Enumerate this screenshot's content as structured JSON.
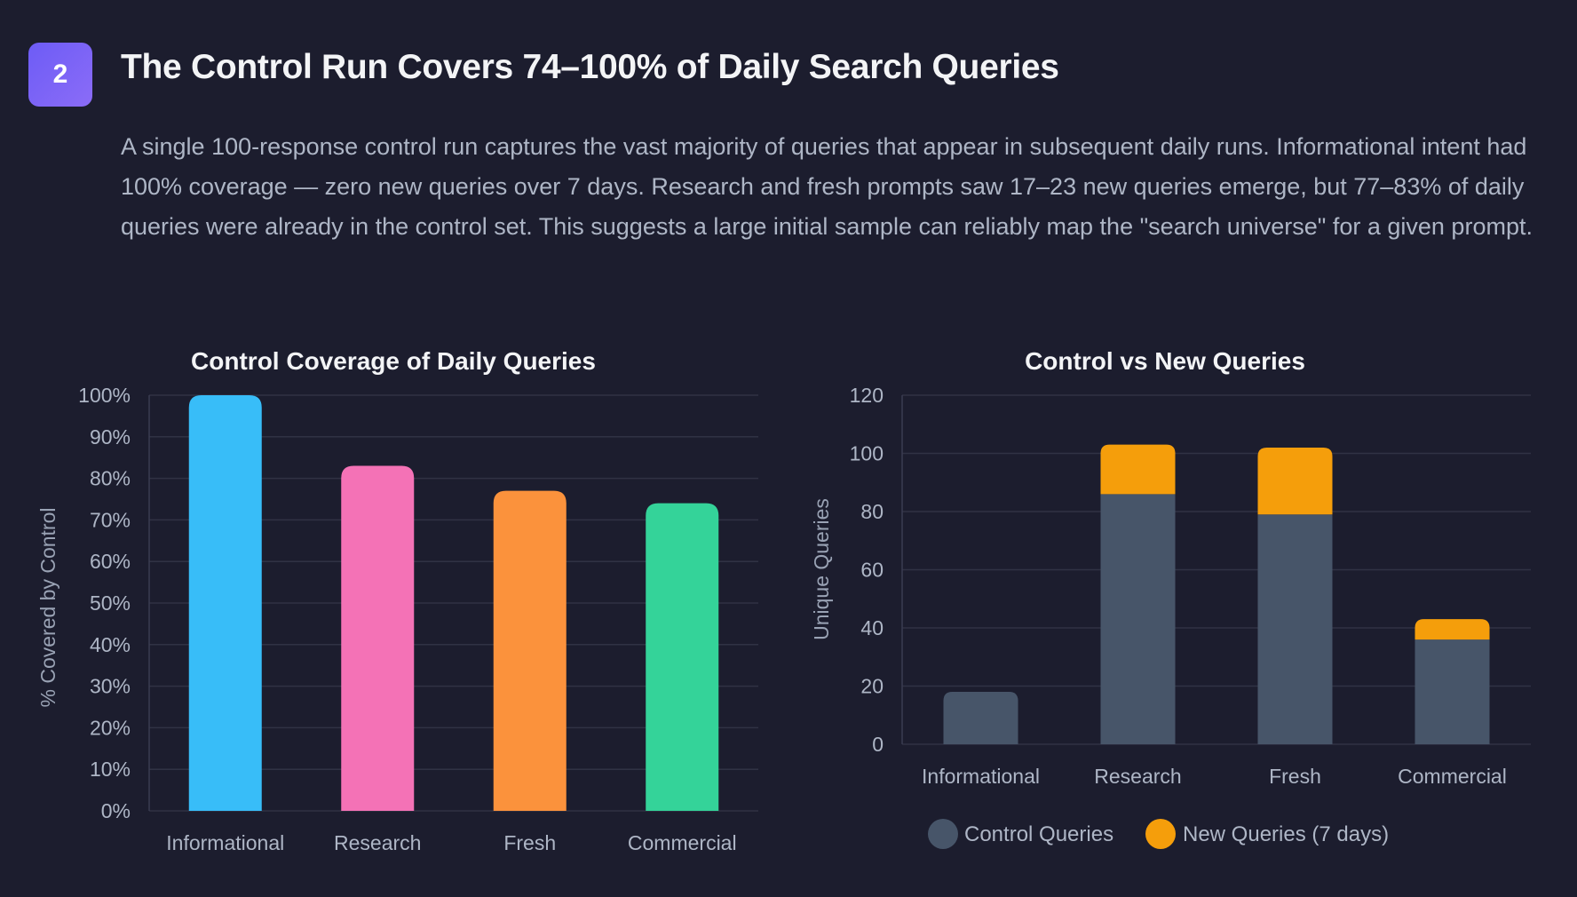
{
  "header": {
    "badge": "2",
    "title": "The Control Run Covers 74–100% of Daily Search Queries",
    "description": "A single 100-response control run captures the vast majority of queries that appear in subsequent daily runs. Informational intent had 100% coverage — zero new queries over 7 days. Research and fresh prompts saw 17–23 new queries emerge, but 77–83% of daily queries were already in the control set. This suggests a large initial sample can reliably map the \"search universe\" for a given prompt."
  },
  "colors": {
    "background": "#1c1d2e",
    "informational": "#38bdf8",
    "research": "#f472b6",
    "fresh": "#fb923c",
    "commercial": "#34d399",
    "control": "#475569",
    "new": "#f59e0b"
  },
  "chart_data": [
    {
      "type": "bar",
      "title": "Control Coverage of Daily Queries",
      "xlabel": "",
      "ylabel": "% Covered by Control",
      "categories": [
        "Informational",
        "Research",
        "Fresh",
        "Commercial"
      ],
      "values": [
        100,
        83,
        77,
        74
      ],
      "ylim": [
        0,
        100
      ],
      "yticks": [
        "0%",
        "10%",
        "20%",
        "30%",
        "40%",
        "50%",
        "60%",
        "70%",
        "80%",
        "90%",
        "100%"
      ],
      "grid": true
    },
    {
      "type": "bar",
      "stacked": true,
      "title": "Control vs New Queries",
      "xlabel": "",
      "ylabel": "Unique Queries",
      "categories": [
        "Informational",
        "Research",
        "Fresh",
        "Commercial"
      ],
      "series": [
        {
          "name": "Control Queries",
          "values": [
            18,
            86,
            79,
            36
          ]
        },
        {
          "name": "New Queries (7 days)",
          "values": [
            0,
            17,
            23,
            7
          ]
        }
      ],
      "ylim": [
        0,
        120
      ],
      "yticks": [
        "0",
        "20",
        "40",
        "60",
        "80",
        "100",
        "120"
      ],
      "legend": "bottom",
      "grid": true
    }
  ]
}
